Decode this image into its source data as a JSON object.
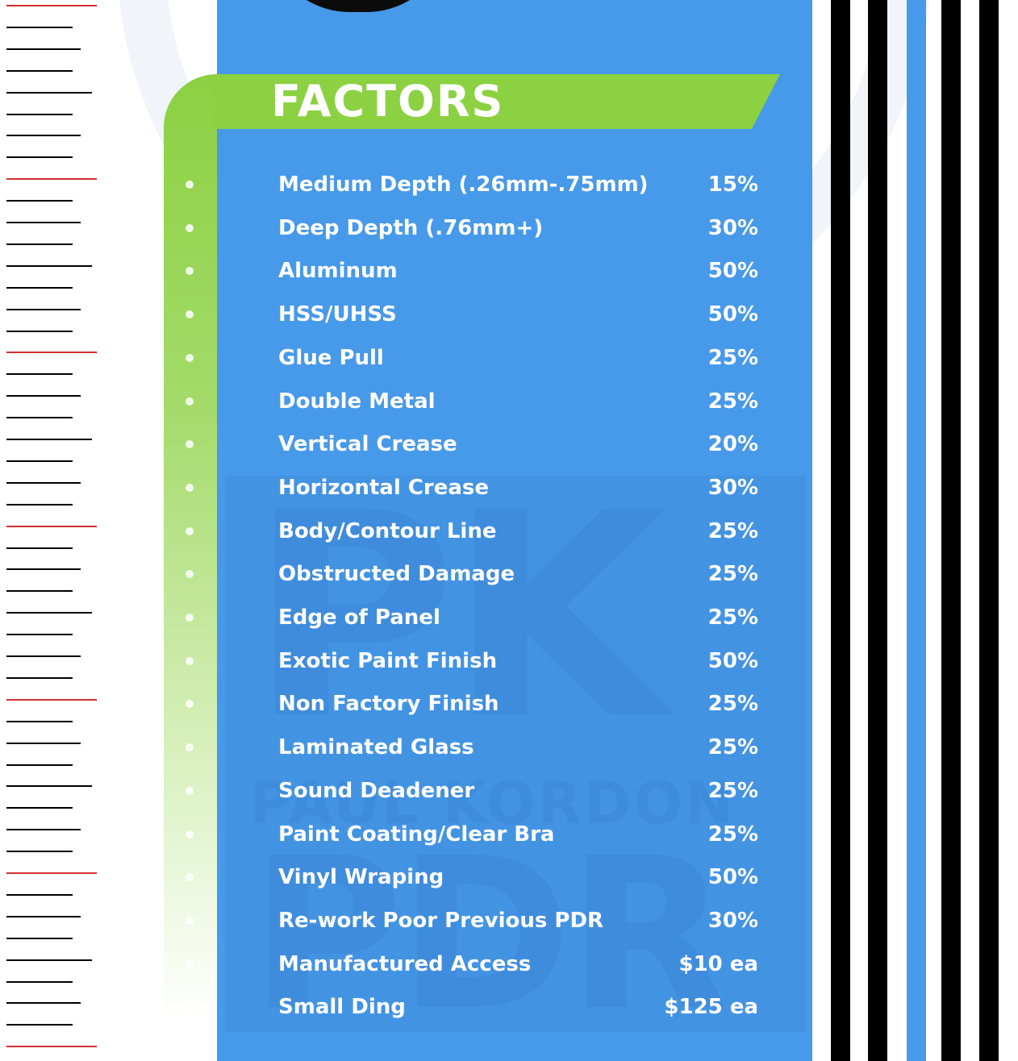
{
  "header": {
    "title": "FACTORS"
  },
  "watermark": {
    "line1": "PK",
    "line2": "PAUL KORDON",
    "line3": "PDR"
  },
  "colors": {
    "panel_blue": "#4799e9",
    "watermark_blue": "#3f8cdc",
    "accent_green": "#8bd142",
    "text": "#ffffff",
    "ruler_black": "#000000",
    "ruler_red": "#d32f2f"
  },
  "items": [
    {
      "label": "Medium Depth (.26mm-.75mm)",
      "value": "15%"
    },
    {
      "label": "Deep Depth (.76mm+)",
      "value": "30%"
    },
    {
      "label": "Aluminum",
      "value": "50%"
    },
    {
      "label": "HSS/UHSS",
      "value": "50%"
    },
    {
      "label": "Glue Pull",
      "value": "25%"
    },
    {
      "label": "Double Metal",
      "value": "25%"
    },
    {
      "label": "Vertical Crease",
      "value": "20%"
    },
    {
      "label": "Horizontal Crease",
      "value": "30%"
    },
    {
      "label": "Body/Contour Line",
      "value": "25%"
    },
    {
      "label": "Obstructed Damage",
      "value": "25%"
    },
    {
      "label": "Edge of Panel",
      "value": "25%"
    },
    {
      "label": "Exotic Paint Finish",
      "value": "50%"
    },
    {
      "label": "Non Factory Finish",
      "value": "25%"
    },
    {
      "label": "Laminated Glass",
      "value": "25%"
    },
    {
      "label": "Sound Deadener",
      "value": "25%"
    },
    {
      "label": "Paint Coating/Clear Bra",
      "value": "25%"
    },
    {
      "label": "Vinyl Wraping",
      "value": "50%"
    },
    {
      "label": "Re-work Poor Previous PDR",
      "value": "30%"
    },
    {
      "label": "Manufactured Access",
      "value": "$10 ea"
    },
    {
      "label": "Small Ding",
      "value": "$125 ea"
    }
  ]
}
